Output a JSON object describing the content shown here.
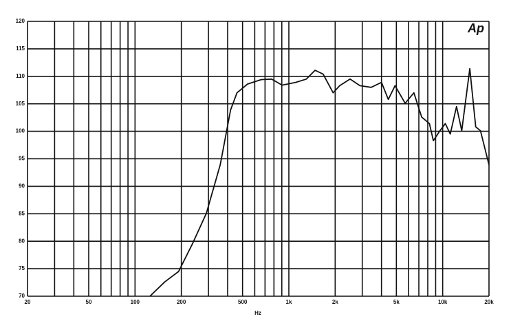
{
  "chart_data": {
    "type": "line",
    "x_label": "Hz",
    "logo": "Ap",
    "xscale": "log",
    "grid": true,
    "x": [
      125,
      156,
      192,
      236,
      291,
      358,
      418,
      460,
      539,
      660,
      773,
      904,
      1107,
      1300,
      1480,
      1670,
      1940,
      2140,
      2500,
      2900,
      3430,
      4000,
      4430,
      4900,
      5700,
      6500,
      7300,
      8200,
      8700,
      9600,
      10400,
      11200,
      12300,
      13300,
      15000,
      16400,
      17600,
      20000
    ],
    "series": [
      {
        "color": "#111111",
        "values": [
          70,
          72.6,
          74.5,
          79.5,
          85.1,
          93.9,
          103.9,
          107,
          108.6,
          109.4,
          109.5,
          108.4,
          108.9,
          109.5,
          111.1,
          110.4,
          107,
          108.3,
          109.5,
          108.3,
          108,
          108.9,
          105.8,
          108.3,
          105.1,
          107,
          102.6,
          101.4,
          98.3,
          100.1,
          101.4,
          99.5,
          104.5,
          100.1,
          111.4,
          100.8,
          100.1,
          93.9
        ]
      }
    ],
    "xlim": [
      20,
      20000
    ],
    "xticks": [
      20,
      50,
      100,
      200,
      500,
      {
        "value": 1000,
        "label": "1k"
      },
      {
        "value": 2000,
        "label": "2k"
      },
      {
        "value": 5000,
        "label": "5k"
      },
      {
        "value": 10000,
        "label": "10k"
      },
      {
        "value": 20000,
        "label": "20k"
      }
    ],
    "xgrid": [
      20,
      30,
      40,
      50,
      60,
      70,
      80,
      90,
      100,
      200,
      300,
      400,
      500,
      600,
      700,
      800,
      900,
      1000,
      2000,
      3000,
      4000,
      5000,
      6000,
      7000,
      8000,
      9000,
      10000,
      20000
    ],
    "ylim": [
      70,
      120
    ],
    "yticks": [
      70,
      75,
      80,
      85,
      90,
      95,
      100,
      105,
      110,
      115,
      120
    ]
  }
}
